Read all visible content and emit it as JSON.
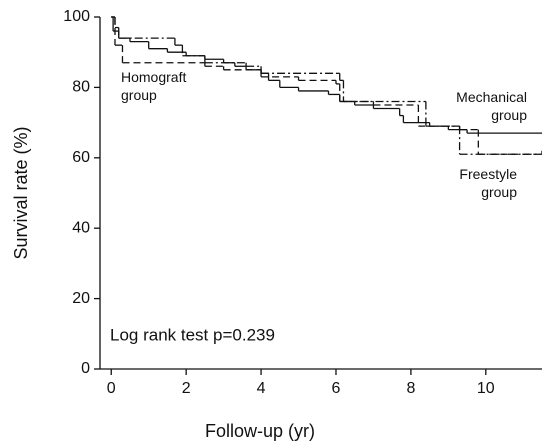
{
  "chart_data": {
    "type": "step",
    "xlabel": "Follow-up (yr)",
    "ylabel": "Survival rate (%)",
    "xlim": [
      -0.3,
      11.5
    ],
    "ylim": [
      0,
      100
    ],
    "xticks": [
      0,
      2,
      4,
      6,
      8,
      10
    ],
    "yticks": [
      0,
      20,
      40,
      60,
      80,
      100
    ],
    "note": "Log rank test p=0.239",
    "series": [
      {
        "name": "Mechanical group",
        "color": "#111111",
        "line_style": "solid",
        "x": [
          0,
          0.05,
          0.2,
          0.5,
          1,
          1.5,
          2,
          2.5,
          3,
          3.3,
          3.6,
          4,
          4.2,
          4.5,
          5,
          5.8,
          6.1,
          6.5,
          7,
          7.7,
          7.8,
          8.5,
          9,
          9.5,
          11.5
        ],
        "values": [
          100,
          96,
          94,
          93,
          91,
          90,
          89,
          88,
          87,
          86,
          85,
          84,
          82,
          80,
          79,
          78,
          76,
          75,
          74,
          72,
          70,
          69,
          68,
          67,
          67
        ]
      },
      {
        "name": "Homograft group",
        "color": "#111111",
        "line_style": "dashed",
        "x": [
          0,
          0.1,
          0.3,
          2.5,
          3,
          4,
          5,
          6,
          6.1,
          7,
          8.2,
          9.3,
          9.8,
          11.5
        ],
        "values": [
          100,
          92,
          87,
          86,
          85,
          83,
          82,
          81,
          76,
          75,
          69,
          68,
          61,
          61
        ]
      },
      {
        "name": "Freestyle group",
        "color": "#111111",
        "line_style": "dashdot",
        "x": [
          0,
          0.1,
          0.2,
          1.7,
          1.9,
          2.5,
          3.6,
          4,
          6,
          6.1,
          6.2,
          8.4,
          9.3,
          11.5
        ],
        "values": [
          100,
          97,
          94,
          92,
          89,
          87,
          86,
          84,
          84,
          82,
          76,
          69,
          61,
          62
        ]
      }
    ]
  }
}
